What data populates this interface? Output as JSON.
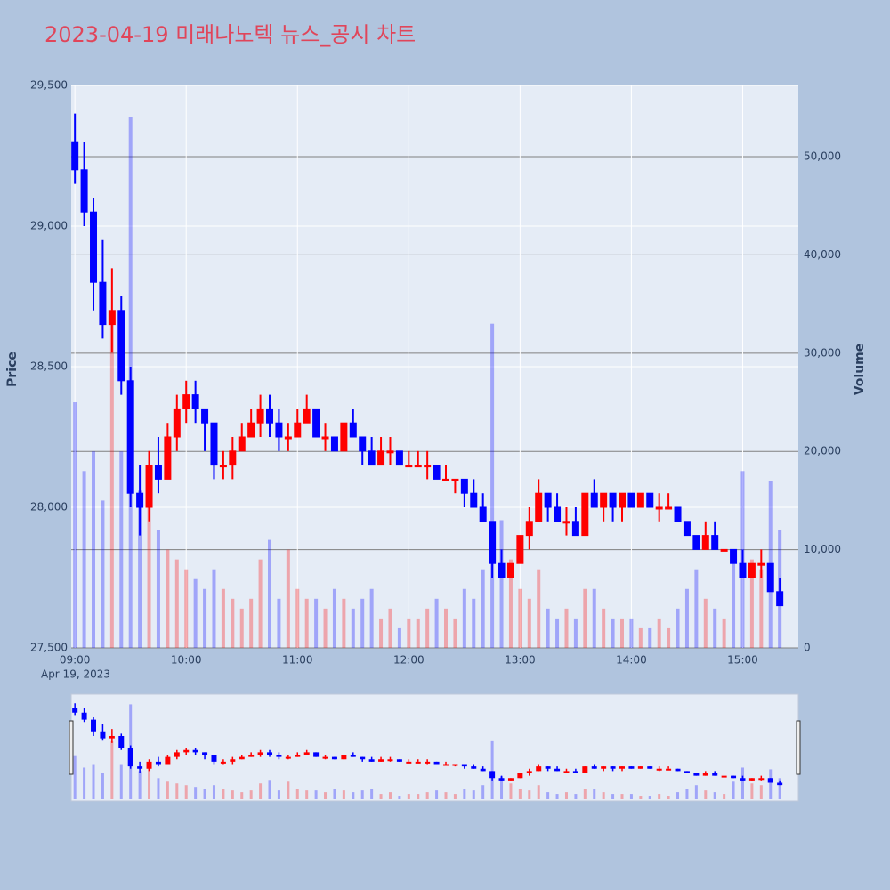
{
  "chart_data": {
    "type": "candlestick",
    "title": "2023-04-19 미래나노텍 뉴스_공시 차트",
    "y_title": "Price",
    "y2_title": "Volume",
    "x_date_label": "Apr 19, 2023",
    "increasing_color": "#ff0000",
    "decreasing_color": "#0000ff",
    "grid": true,
    "rangeslider": true,
    "xlim": [
      "2023-04-19 08:58",
      "2023-04-19 15:30"
    ],
    "xticks": [
      {
        "value": "2023-04-19 09:00",
        "label": "09:00"
      },
      {
        "value": "2023-04-19 10:00",
        "label": "10:00"
      },
      {
        "value": "2023-04-19 11:00",
        "label": "11:00"
      },
      {
        "value": "2023-04-19 12:00",
        "label": "12:00"
      },
      {
        "value": "2023-04-19 13:00",
        "label": "13:00"
      },
      {
        "value": "2023-04-19 14:00",
        "label": "14:00"
      },
      {
        "value": "2023-04-19 15:00",
        "label": "15:00"
      }
    ],
    "ylim": [
      27500,
      29500
    ],
    "yticks": [
      {
        "value": 27500,
        "label": "27,500"
      },
      {
        "value": 28000,
        "label": "28,000"
      },
      {
        "value": 28500,
        "label": "28,500"
      },
      {
        "value": 29000,
        "label": "29,000"
      },
      {
        "value": 29500,
        "label": "29,500"
      }
    ],
    "y2lim": [
      0,
      57250
    ],
    "y2ticks": [
      0,
      {
        "value": 10000,
        "label": "10,000"
      },
      {
        "value": 20000,
        "label": "20,000"
      },
      {
        "value": 30000,
        "label": "30,000"
      },
      {
        "value": 40000,
        "label": "40,000"
      },
      {
        "value": 50000,
        "label": "50,000"
      }
    ],
    "x": [
      "2023-04-19 09:00",
      "2023-04-19 09:05",
      "2023-04-19 09:10",
      "2023-04-19 09:15",
      "2023-04-19 09:20",
      "2023-04-19 09:25",
      "2023-04-19 09:30",
      "2023-04-19 09:35",
      "2023-04-19 09:40",
      "2023-04-19 09:45",
      "2023-04-19 09:50",
      "2023-04-19 09:55",
      "2023-04-19 10:00",
      "2023-04-19 10:05",
      "2023-04-19 10:10",
      "2023-04-19 10:15",
      "2023-04-19 10:20",
      "2023-04-19 10:25",
      "2023-04-19 10:30",
      "2023-04-19 10:35",
      "2023-04-19 10:40",
      "2023-04-19 10:45",
      "2023-04-19 10:50",
      "2023-04-19 10:55",
      "2023-04-19 11:00",
      "2023-04-19 11:05",
      "2023-04-19 11:10",
      "2023-04-19 11:15",
      "2023-04-19 11:20",
      "2023-04-19 11:25",
      "2023-04-19 11:30",
      "2023-04-19 11:35",
      "2023-04-19 11:40",
      "2023-04-19 11:45",
      "2023-04-19 11:50",
      "2023-04-19 11:55",
      "2023-04-19 12:00",
      "2023-04-19 12:05",
      "2023-04-19 12:10",
      "2023-04-19 12:15",
      "2023-04-19 12:20",
      "2023-04-19 12:25",
      "2023-04-19 12:30",
      "2023-04-19 12:35",
      "2023-04-19 12:40",
      "2023-04-19 12:45",
      "2023-04-19 12:50",
      "2023-04-19 12:55",
      "2023-04-19 13:00",
      "2023-04-19 13:05",
      "2023-04-19 13:10",
      "2023-04-19 13:15",
      "2023-04-19 13:20",
      "2023-04-19 13:25",
      "2023-04-19 13:30",
      "2023-04-19 13:35",
      "2023-04-19 13:40",
      "2023-04-19 13:45",
      "2023-04-19 13:50",
      "2023-04-19 13:55",
      "2023-04-19 14:00",
      "2023-04-19 14:05",
      "2023-04-19 14:10",
      "2023-04-19 14:15",
      "2023-04-19 14:20",
      "2023-04-19 14:25",
      "2023-04-19 14:30",
      "2023-04-19 14:35",
      "2023-04-19 14:40",
      "2023-04-19 14:45",
      "2023-04-19 14:50",
      "2023-04-19 14:55",
      "2023-04-19 15:00",
      "2023-04-19 15:05",
      "2023-04-19 15:10",
      "2023-04-19 15:15",
      "2023-04-19 15:20"
    ],
    "open": [
      29300,
      29200,
      29050,
      28800,
      28650,
      28700,
      28450,
      28050,
      28000,
      28150,
      28100,
      28250,
      28350,
      28400,
      28350,
      28300,
      28150,
      28150,
      28200,
      28250,
      28300,
      28350,
      28300,
      28250,
      28250,
      28300,
      28350,
      28250,
      28250,
      28200,
      28300,
      28250,
      28200,
      28150,
      28200,
      28200,
      28150,
      28150,
      28150,
      28150,
      28100,
      28100,
      28100,
      28050,
      28000,
      27950,
      27800,
      27750,
      27800,
      27900,
      27950,
      28050,
      28000,
      27950,
      27950,
      27900,
      28050,
      28000,
      28050,
      28000,
      28050,
      28000,
      28050,
      28000,
      28000,
      28000,
      27950,
      27900,
      27850,
      27900,
      27850,
      27850,
      27800,
      27750,
      27800,
      27800,
      27700
    ],
    "high": [
      29400,
      29300,
      29100,
      28950,
      28850,
      28750,
      28500,
      28150,
      28200,
      28250,
      28300,
      28400,
      28450,
      28450,
      28350,
      28300,
      28200,
      28250,
      28300,
      28350,
      28400,
      28400,
      28350,
      28300,
      28350,
      28400,
      28350,
      28300,
      28250,
      28300,
      28350,
      28250,
      28250,
      28250,
      28250,
      28200,
      28200,
      28200,
      28200,
      28150,
      28150,
      28100,
      28100,
      28100,
      28050,
      27950,
      27850,
      27800,
      27900,
      28000,
      28100,
      28050,
      28050,
      28000,
      28000,
      28050,
      28100,
      28050,
      28050,
      28050,
      28050,
      28050,
      28050,
      28050,
      28050,
      28000,
      27950,
      27900,
      27950,
      27950,
      27850,
      27850,
      27850,
      27800,
      27850,
      27800,
      27750
    ],
    "low": [
      29150,
      29000,
      28700,
      28600,
      28550,
      28400,
      28000,
      27900,
      27950,
      28050,
      28100,
      28200,
      28300,
      28300,
      28200,
      28100,
      28100,
      28100,
      28200,
      28250,
      28250,
      28250,
      28200,
      28200,
      28250,
      28300,
      28250,
      28200,
      28200,
      28200,
      28250,
      28150,
      28150,
      28150,
      28150,
      28150,
      28150,
      28150,
      28100,
      28100,
      28100,
      28050,
      28000,
      28000,
      27950,
      27750,
      27750,
      27750,
      27800,
      27850,
      27950,
      27950,
      27950,
      27900,
      27900,
      27900,
      28000,
      27950,
      27950,
      27950,
      28000,
      28000,
      28000,
      27950,
      28000,
      27950,
      27900,
      27850,
      27850,
      27850,
      27850,
      27800,
      27750,
      27750,
      27750,
      27700,
      27650
    ],
    "close": [
      29200,
      29050,
      28800,
      28650,
      28700,
      28450,
      28050,
      28000,
      28150,
      28100,
      28250,
      28350,
      28400,
      28350,
      28300,
      28150,
      28150,
      28200,
      28250,
      28300,
      28350,
      28300,
      28250,
      28250,
      28300,
      28350,
      28250,
      28250,
      28200,
      28300,
      28250,
      28200,
      28150,
      28200,
      28200,
      28150,
      28150,
      28150,
      28150,
      28100,
      28100,
      28100,
      28050,
      28000,
      27950,
      27800,
      27750,
      27800,
      27900,
      27950,
      28050,
      28000,
      27950,
      27950,
      27900,
      28050,
      28000,
      28050,
      28000,
      28050,
      28000,
      28050,
      28000,
      28000,
      28000,
      27950,
      27900,
      27850,
      27900,
      27850,
      27850,
      27800,
      27750,
      27800,
      27800,
      27700,
      27650
    ],
    "volume": [
      25000,
      18000,
      20000,
      15000,
      33000,
      20000,
      54000,
      16000,
      18000,
      12000,
      10000,
      9000,
      8000,
      7000,
      6000,
      8000,
      6000,
      5000,
      4000,
      5000,
      9000,
      11000,
      5000,
      10000,
      6000,
      5000,
      5000,
      4000,
      6000,
      5000,
      4000,
      5000,
      6000,
      3000,
      4000,
      2000,
      3000,
      3000,
      4000,
      5000,
      4000,
      3000,
      6000,
      5000,
      8000,
      33000,
      13000,
      9000,
      6000,
      5000,
      8000,
      4000,
      3000,
      4000,
      3000,
      6000,
      6000,
      4000,
      3000,
      3000,
      3000,
      2000,
      2000,
      3000,
      2000,
      4000,
      6000,
      8000,
      5000,
      4000,
      3000,
      10000,
      18000,
      9000,
      8000,
      17000,
      12000
    ]
  }
}
